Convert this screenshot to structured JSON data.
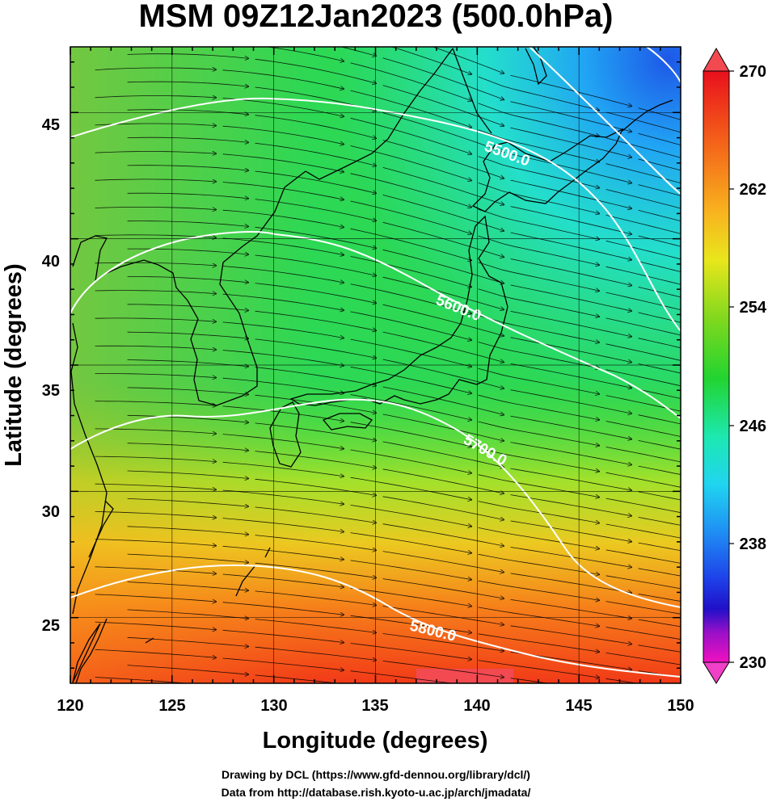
{
  "title": "MSM 09Z12Jan2023 (500.0hPa)",
  "x_axis": {
    "label": "Longitude (degrees)",
    "range": [
      120,
      150
    ],
    "ticks": [
      "120",
      "125",
      "130",
      "135",
      "140",
      "145",
      "150"
    ]
  },
  "y_axis": {
    "label": "Latitude  (degrees)",
    "range": [
      22.4,
      47.6
    ],
    "ticks": [
      "25",
      "30",
      "35",
      "40",
      "45"
    ]
  },
  "colorbar": {
    "ticks": [
      "270",
      "262",
      "254",
      "246",
      "238",
      "230"
    ],
    "range": [
      230,
      270
    ]
  },
  "contours": [
    {
      "label": "5500.0",
      "value": 5500
    },
    {
      "label": "5600.0",
      "value": 5600
    },
    {
      "label": "5700.0",
      "value": 5700
    },
    {
      "label": "5800.0",
      "value": 5800
    }
  ],
  "credits": {
    "line1": "Drawing by DCL (https://www.gfd-dennou.org/library/dcl/)",
    "line2": "Data from http://database.rish.kyoto-u.ac.jp/arch/jmadata/"
  },
  "colors": {
    "contour": "#ffffff",
    "streamline": "#000000",
    "coastline": "#000000",
    "grid": "#000000"
  }
}
